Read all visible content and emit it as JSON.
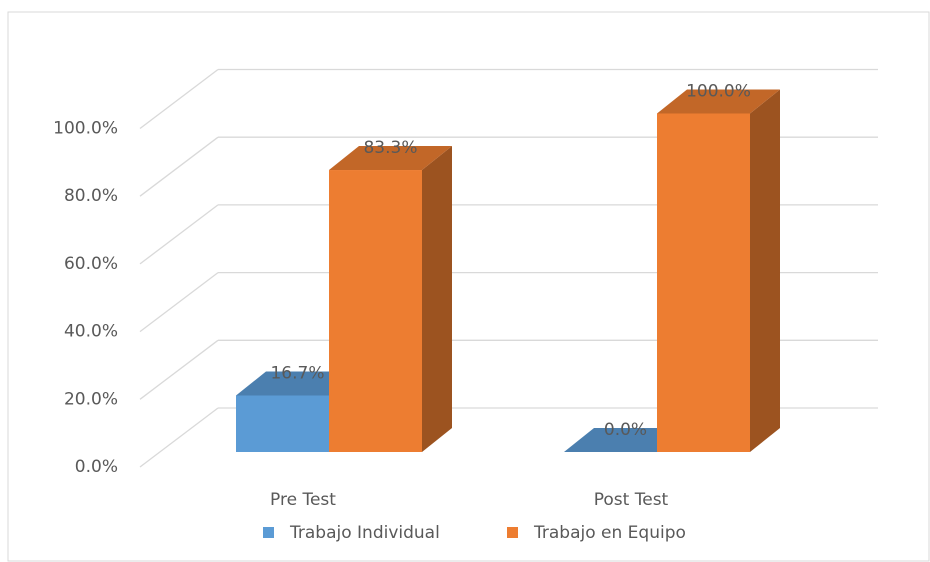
{
  "chart_data": {
    "type": "bar3d",
    "categories": [
      "Pre Test",
      "Post Test"
    ],
    "series": [
      {
        "name": "Trabajo Individual",
        "color": "#5b9bd5",
        "values": [
          16.7,
          0.0
        ],
        "value_labels": [
          "16.7%",
          "0.0%"
        ]
      },
      {
        "name": "Trabajo en Equipo",
        "color": "#ed7d31",
        "values": [
          83.3,
          100.0
        ],
        "value_labels": [
          "83.3%",
          "100.0%"
        ]
      }
    ],
    "ylim": [
      0,
      100
    ],
    "yticks": [
      {
        "value": 0,
        "label": "0.0%"
      },
      {
        "value": 20,
        "label": "20.0%"
      },
      {
        "value": 40,
        "label": "40.0%"
      },
      {
        "value": 60,
        "label": "60.0%"
      },
      {
        "value": 80,
        "label": "80.0%"
      },
      {
        "value": 100,
        "label": "100.0%"
      }
    ],
    "grid": true,
    "legend": "bottom"
  }
}
